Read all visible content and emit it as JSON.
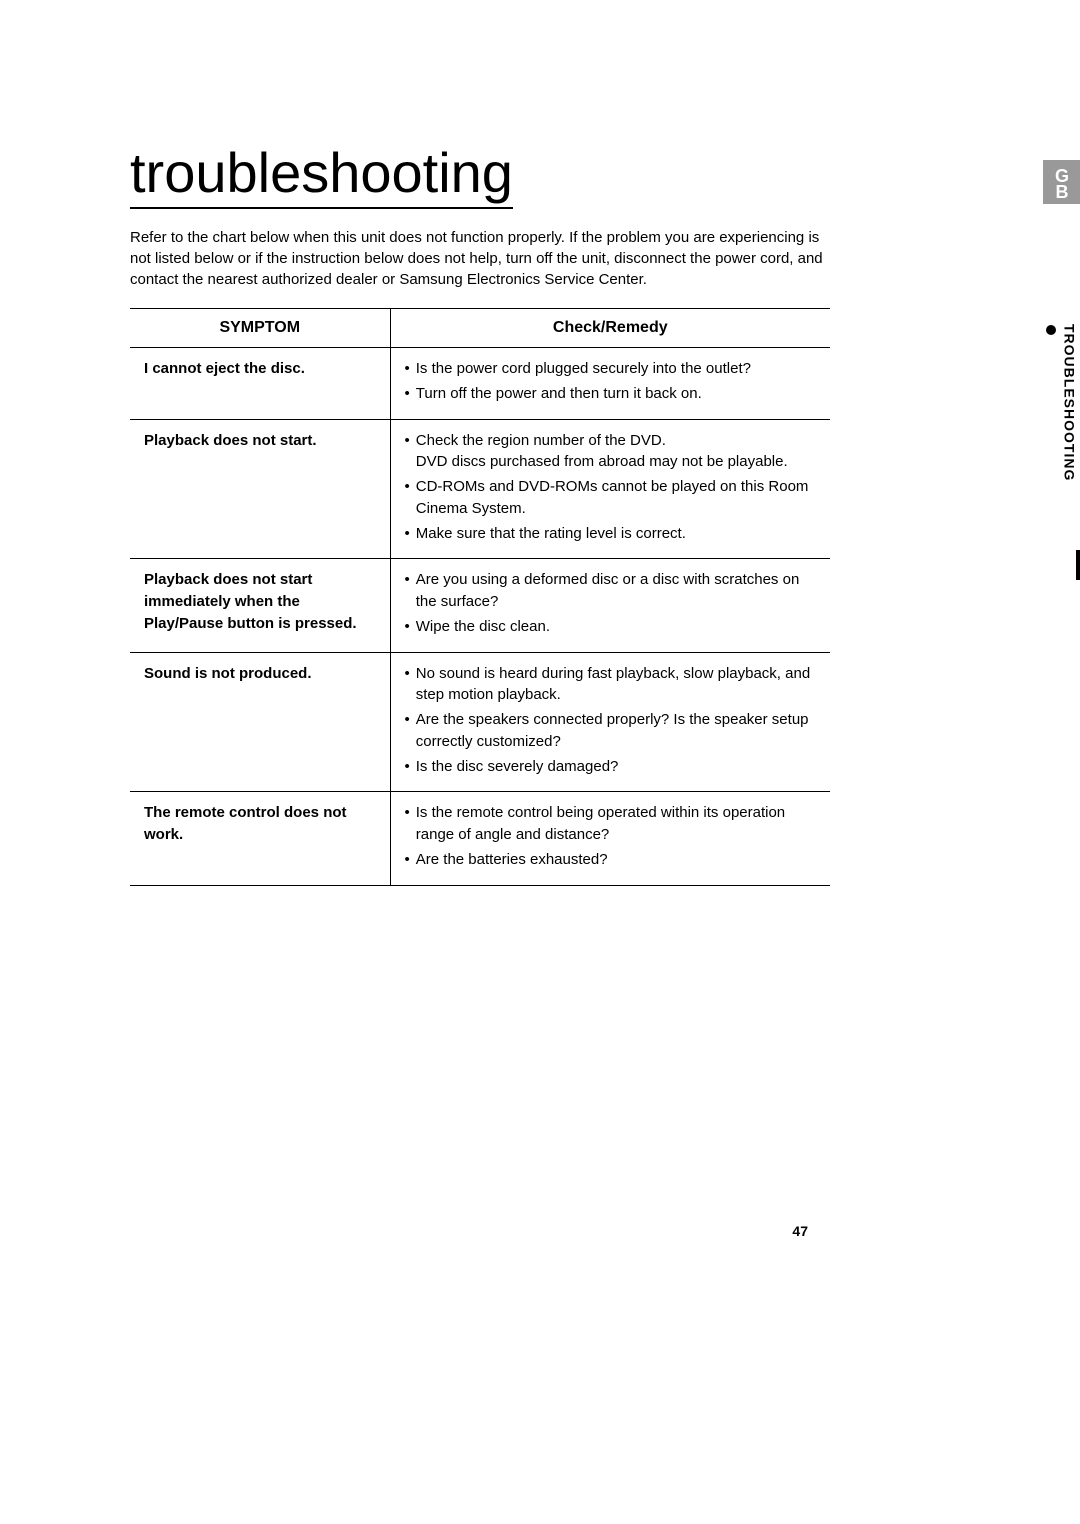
{
  "page": {
    "title": "troubleshooting",
    "intro": "Refer to the chart below when this unit does not function properly. If the problem you are experiencing is not listed below or if the instruction below does not help, turn off the unit, disconnect the power cord, and contact the nearest authorized dealer or Samsung Electronics Service Center.",
    "number": "47"
  },
  "side": {
    "badge": "GB",
    "label": "TROUBLESHOOTING"
  },
  "table": {
    "headers": {
      "symptom": "SYMPTOM",
      "remedy": "Check/Remedy"
    },
    "rows": [
      {
        "symptom": "I cannot eject the disc.",
        "remedies": [
          {
            "text": "Is the power cord plugged securely into the outlet?"
          },
          {
            "text": "Turn off the power and then turn it back on."
          }
        ]
      },
      {
        "symptom": "Playback does not start.",
        "remedies": [
          {
            "text": "Check the region number of the DVD.",
            "sub": "DVD discs purchased from abroad may not be playable."
          },
          {
            "text": "CD-ROMs and DVD-ROMs cannot be played on this Room Cinema System."
          },
          {
            "text": "Make sure that the rating level is correct."
          }
        ]
      },
      {
        "symptom": "Playback does not start immediately when the Play/Pause button is pressed.",
        "remedies": [
          {
            "text": "Are you using a deformed disc or a disc with scratches on the surface?"
          },
          {
            "text": "Wipe the disc clean."
          }
        ]
      },
      {
        "symptom": "Sound is not produced.",
        "remedies": [
          {
            "text": "No sound is heard during fast playback, slow playback, and step motion playback."
          },
          {
            "text": "Are the speakers connected properly? Is the speaker setup correctly customized?"
          },
          {
            "text": "Is the disc severely damaged?"
          }
        ]
      },
      {
        "symptom": "The remote control does not work.",
        "remedies": [
          {
            "text": "Is the remote control being operated within its operation range of angle and distance?"
          },
          {
            "text": "Are the batteries exhausted?"
          }
        ]
      }
    ]
  },
  "style": {
    "page_bg": "#ffffff",
    "text_color": "#000000",
    "badge_bg": "#999999",
    "badge_fg": "#ffffff",
    "title_fontsize": 56,
    "body_fontsize": 15,
    "header_fontsize": 16,
    "sidelabel_fontsize": 14
  }
}
